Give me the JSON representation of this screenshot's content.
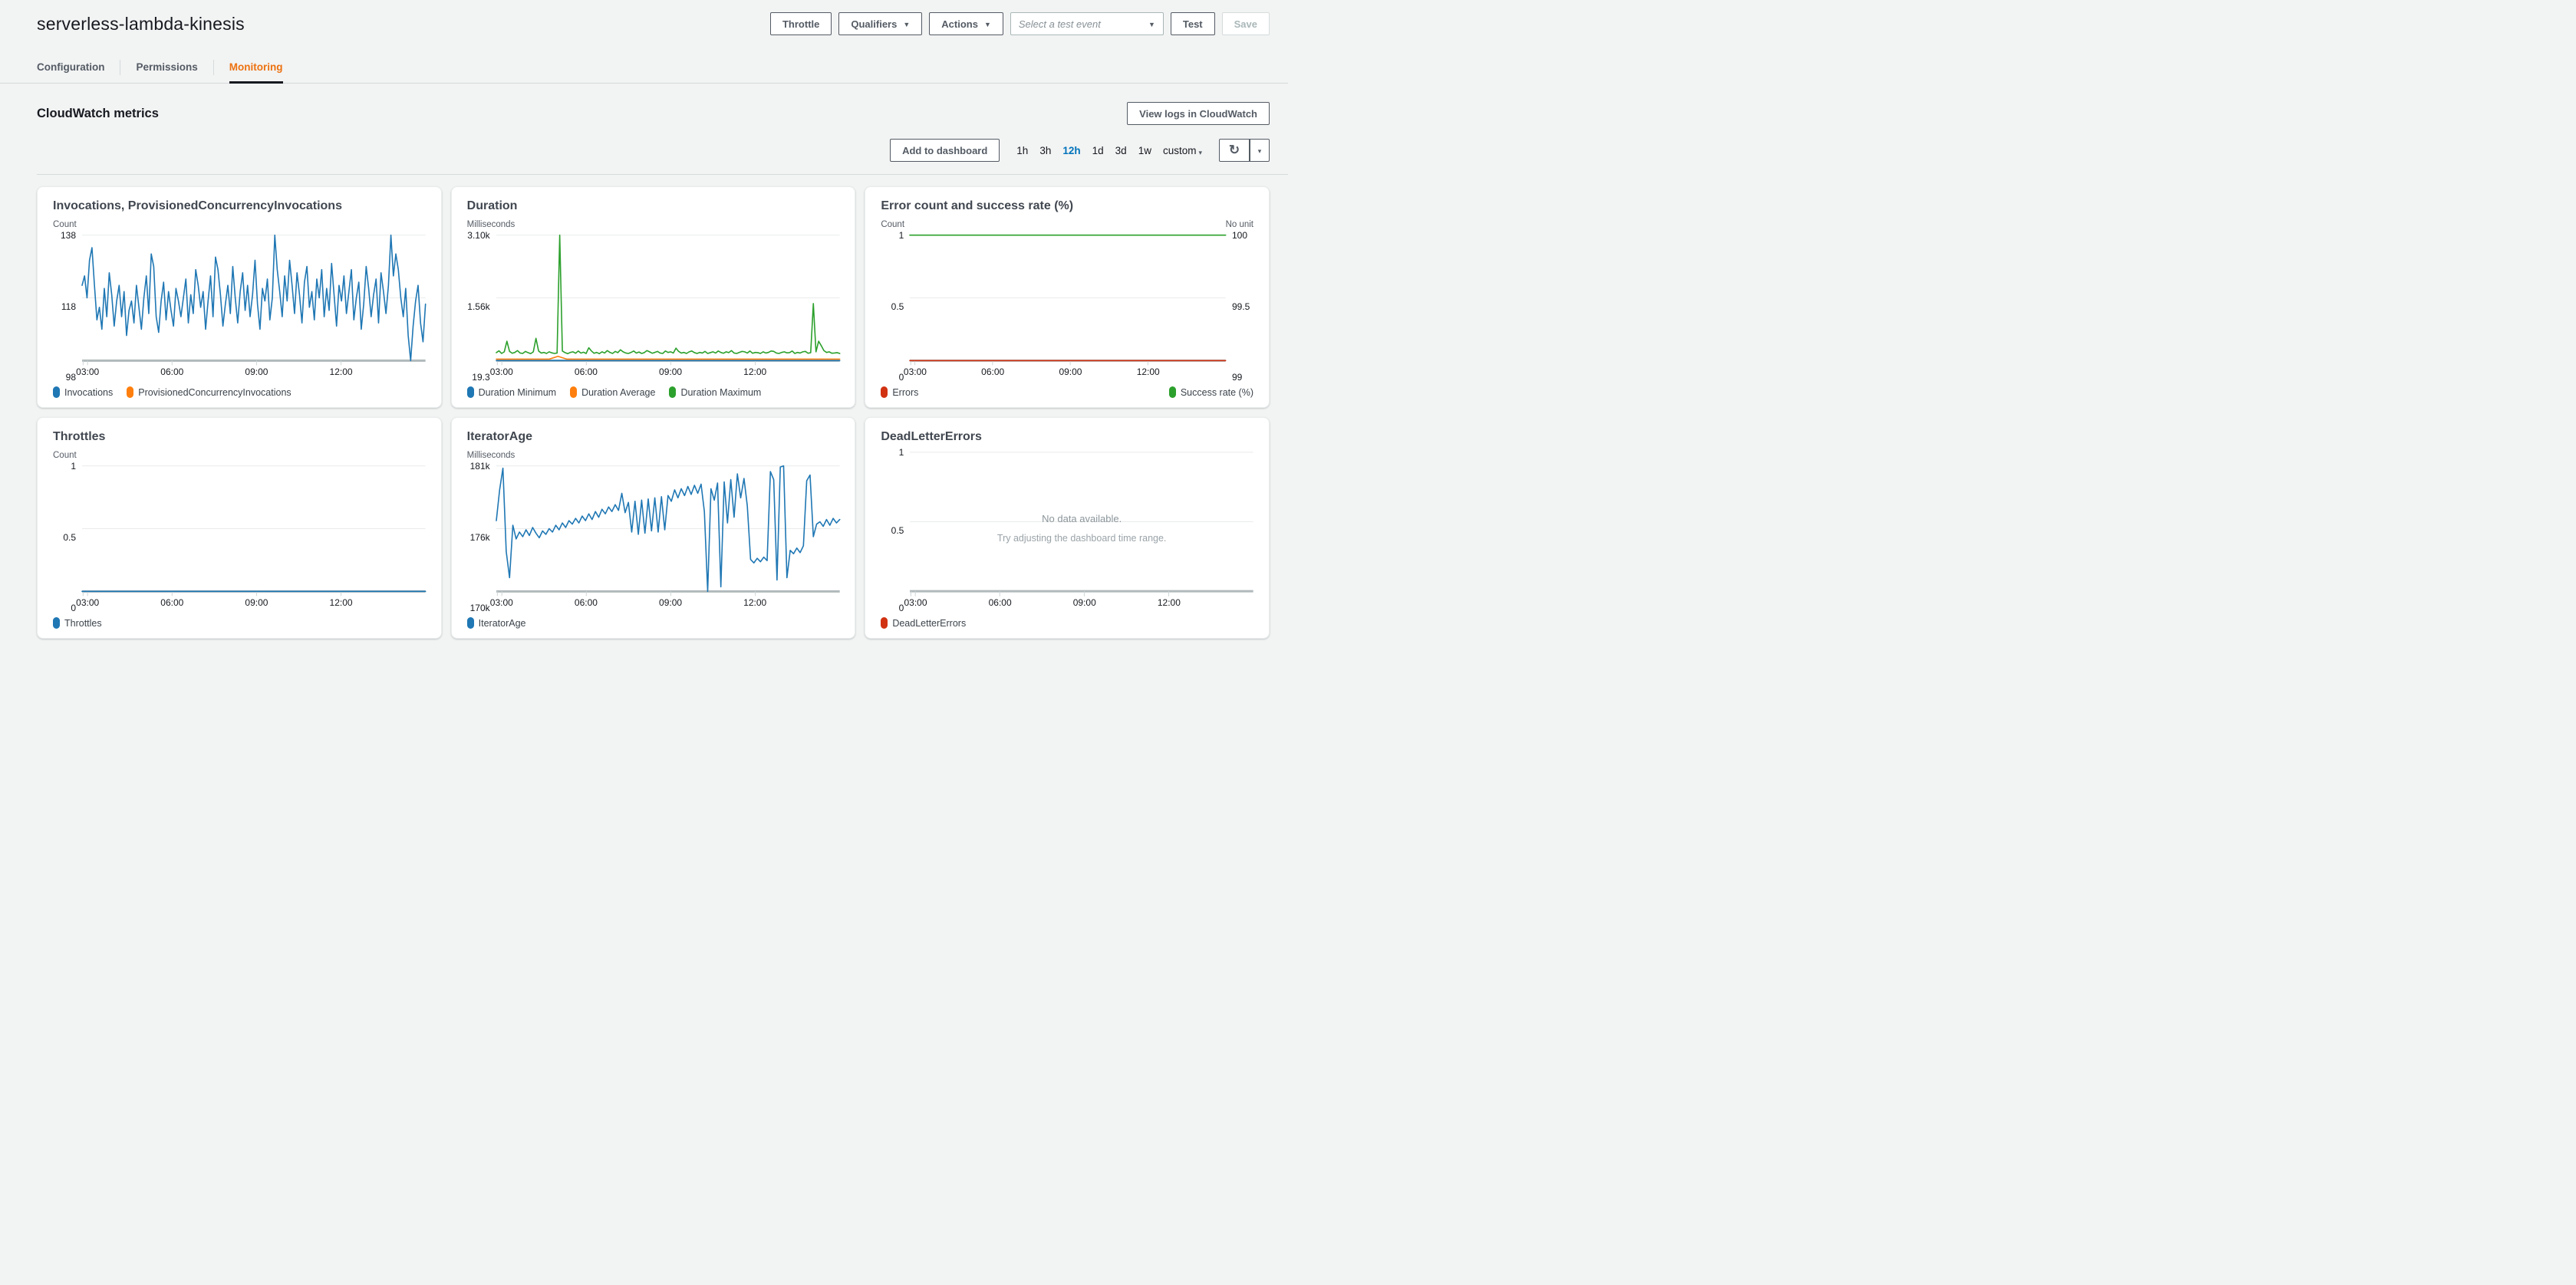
{
  "header": {
    "title": "serverless-lambda-kinesis",
    "throttle_label": "Throttle",
    "qualifiers_label": "Qualifiers",
    "actions_label": "Actions",
    "test_event_placeholder": "Select a test event",
    "test_label": "Test",
    "save_label": "Save",
    "caret": "▼"
  },
  "tabs": {
    "items": [
      {
        "label": "Configuration"
      },
      {
        "label": "Permissions"
      },
      {
        "label": "Monitoring"
      }
    ],
    "active": "Monitoring"
  },
  "metrics": {
    "heading": "CloudWatch metrics",
    "view_logs_label": "View logs in CloudWatch"
  },
  "toolbar": {
    "add_to_dashboard_label": "Add to dashboard",
    "ranges": [
      "1h",
      "3h",
      "12h",
      "1d",
      "3d",
      "1w",
      "custom"
    ],
    "selected_range": "12h",
    "custom_caret": "▾",
    "dropdown_caret": "▾",
    "refresh_icon": "↻"
  },
  "colors": {
    "blue": "#1f77b4",
    "orange": "#ff7f0e",
    "green": "#2ca02c",
    "red": "#d13212",
    "accent_orange": "#ec7211",
    "link_blue": "#0073bb"
  },
  "chart_data": [
    {
      "id": "invocations",
      "type": "line",
      "title": "Invocations, ProvisionedConcurrencyInvocations",
      "unit_left": "Count",
      "ymin": 98,
      "ymax": 138,
      "y_ticks_left": [
        "138",
        "118",
        "98"
      ],
      "x_ticks": {
        "labels": [
          "03:00",
          "06:00",
          "09:00",
          "12:00"
        ],
        "positions": [
          0.016,
          0.262,
          0.508,
          0.754
        ]
      },
      "series": [
        {
          "name": "Invocations",
          "color": "#1f77b4",
          "values": [
            122,
            125,
            118,
            130,
            134,
            122,
            111,
            115,
            108,
            121,
            112,
            126,
            119,
            109,
            117,
            122,
            112,
            120,
            106,
            114,
            117,
            110,
            122,
            115,
            108,
            118,
            125,
            113,
            132,
            128,
            112,
            107,
            117,
            123,
            111,
            120,
            114,
            109,
            121,
            117,
            112,
            118,
            124,
            110,
            119,
            113,
            127,
            122,
            115,
            120,
            108,
            117,
            125,
            112,
            131,
            127,
            119,
            109,
            116,
            122,
            113,
            128,
            118,
            110,
            120,
            126,
            114,
            122,
            112,
            119,
            130,
            116,
            108,
            121,
            117,
            124,
            111,
            118,
            138,
            127,
            120,
            112,
            125,
            117,
            130,
            122,
            113,
            126,
            119,
            110,
            123,
            128,
            115,
            120,
            111,
            124,
            118,
            127,
            112,
            121,
            114,
            129,
            119,
            109,
            122,
            117,
            125,
            113,
            120,
            127,
            111,
            118,
            123,
            108,
            116,
            128,
            121,
            112,
            119,
            124,
            110,
            126,
            120,
            113,
            122,
            138,
            125,
            132,
            127,
            118,
            112,
            121,
            106,
            98,
            109,
            117,
            122,
            110,
            104,
            116
          ]
        },
        {
          "name": "ProvisionedConcurrencyInvocations",
          "color": "#ff7f0e",
          "values": []
        }
      ]
    },
    {
      "id": "duration",
      "type": "line",
      "title": "Duration",
      "unit_left": "Milliseconds",
      "ymin": 19.3,
      "ymax": 3100,
      "y_ticks_left": [
        "3.10k",
        "1.56k",
        "19.3"
      ],
      "x_ticks": {
        "labels": [
          "03:00",
          "06:00",
          "09:00",
          "12:00"
        ],
        "positions": [
          0.016,
          0.262,
          0.508,
          0.754
        ]
      },
      "series": [
        {
          "name": "Duration Minimum",
          "color": "#1f77b4",
          "values": [
            19.3,
            19.3
          ]
        },
        {
          "name": "Duration Average",
          "color": "#ff7f0e",
          "values": [
            55,
            55,
            55,
            55,
            55,
            55,
            55,
            125,
            55,
            55,
            55,
            55,
            55,
            55,
            55,
            55,
            55,
            55,
            55,
            55,
            55,
            55,
            55,
            55,
            55,
            55,
            55,
            55,
            55,
            55,
            55,
            55,
            55,
            55,
            55,
            55,
            55,
            55,
            55,
            55
          ]
        },
        {
          "name": "Duration Maximum",
          "color": "#2ca02c",
          "values": [
            215,
            260,
            195,
            235,
            495,
            245,
            200,
            220,
            265,
            205,
            195,
            245,
            215,
            190,
            235,
            565,
            255,
            205,
            220,
            195,
            235,
            210,
            195,
            205,
            3100,
            255,
            215,
            190,
            220,
            235,
            200,
            255,
            205,
            225,
            195,
            335,
            255,
            200,
            220,
            190,
            235,
            205,
            265,
            220,
            195,
            245,
            215,
            285,
            235,
            205,
            195,
            220,
            255,
            205,
            230,
            195,
            215,
            265,
            235,
            200,
            220,
            245,
            205,
            195,
            255,
            220,
            235,
            205,
            325,
            245,
            205,
            220,
            195,
            235,
            255,
            215,
            195,
            220,
            205,
            245,
            195,
            215,
            235,
            205,
            255,
            220,
            200,
            235,
            215,
            265,
            205,
            195,
            220,
            245,
            235,
            205,
            255,
            200,
            220,
            215,
            195,
            235,
            205,
            220,
            255,
            245,
            205,
            195,
            220,
            235,
            210,
            215,
            255,
            195,
            220,
            205,
            235,
            245,
            200,
            215,
            1420,
            235,
            495,
            385,
            265,
            220,
            235,
            200,
            205,
            215,
            195
          ]
        }
      ]
    },
    {
      "id": "error-success",
      "type": "line",
      "title": "Error count and success rate (%)",
      "unit_left": "Count",
      "unit_right": "No unit",
      "ymin": 0,
      "ymax": 1,
      "y_ticks_left": [
        "1",
        "0.5",
        "0"
      ],
      "y_ticks_right": [
        "100",
        "99.5",
        "99"
      ],
      "legend_split": true,
      "x_ticks": {
        "labels": [
          "03:00",
          "06:00",
          "09:00",
          "12:00"
        ],
        "positions": [
          0.016,
          0.262,
          0.508,
          0.754
        ]
      },
      "series": [
        {
          "name": "Errors",
          "color": "#d13212",
          "values": [
            0,
            0
          ]
        },
        {
          "name": "Success rate (%)",
          "color": "#2ca02c",
          "ymin": 99,
          "ymax": 100,
          "values": [
            100,
            100
          ]
        }
      ]
    },
    {
      "id": "throttles",
      "type": "line",
      "title": "Throttles",
      "unit_left": "Count",
      "ymin": 0,
      "ymax": 1,
      "y_ticks_left": [
        "1",
        "0.5",
        "0"
      ],
      "x_ticks": {
        "labels": [
          "03:00",
          "06:00",
          "09:00",
          "12:00"
        ],
        "positions": [
          0.016,
          0.262,
          0.508,
          0.754
        ]
      },
      "series": [
        {
          "name": "Throttles",
          "color": "#1f77b4",
          "values": [
            0,
            0
          ]
        }
      ]
    },
    {
      "id": "iteratorage",
      "type": "line",
      "title": "IteratorAge",
      "unit_left": "Milliseconds",
      "ymin": 170000,
      "ymax": 181000,
      "y_ticks_left": [
        "181k",
        "176k",
        "170k"
      ],
      "x_ticks": {
        "labels": [
          "03:00",
          "06:00",
          "09:00",
          "12:00"
        ],
        "positions": [
          0.016,
          0.262,
          0.508,
          0.754
        ]
      },
      "series": [
        {
          "name": "IteratorAge",
          "color": "#1f77b4",
          "values": [
            176200,
            178900,
            180800,
            173500,
            171200,
            175800,
            174600,
            175200,
            174800,
            175400,
            174900,
            175600,
            175100,
            174700,
            175300,
            175000,
            175500,
            175200,
            175800,
            175400,
            176000,
            175600,
            176200,
            175900,
            176400,
            176000,
            176600,
            176200,
            176800,
            176300,
            177000,
            176500,
            177200,
            176800,
            177400,
            177000,
            177600,
            177100,
            178600,
            176900,
            177800,
            175200,
            177900,
            175000,
            178000,
            175100,
            178100,
            175300,
            178200,
            175200,
            178300,
            175400,
            178400,
            177900,
            178900,
            178200,
            179000,
            178400,
            179200,
            178500,
            179300,
            178600,
            179400,
            177000,
            170000,
            179000,
            178000,
            179500,
            170400,
            179600,
            176000,
            179800,
            176500,
            180300,
            178200,
            179900,
            177500,
            172800,
            172500,
            172900,
            172600,
            173000,
            172700,
            180500,
            179800,
            171000,
            180900,
            181000,
            171200,
            173600,
            173300,
            173800,
            173400,
            174000,
            179700,
            180200,
            174800,
            175900,
            176100,
            175700,
            176300,
            175800,
            176400,
            176000,
            176300
          ]
        }
      ]
    },
    {
      "id": "deadlettererrors",
      "type": "line",
      "title": "DeadLetterErrors",
      "ymin": 0,
      "ymax": 1,
      "y_ticks_left": [
        "1",
        "0.5",
        "0"
      ],
      "no_data": {
        "line1": "No data available.",
        "line2": "Try adjusting the dashboard time range."
      },
      "x_ticks": {
        "labels": [
          "03:00",
          "06:00",
          "09:00",
          "12:00"
        ],
        "positions": [
          0.016,
          0.262,
          0.508,
          0.754
        ]
      },
      "series": [
        {
          "name": "DeadLetterErrors",
          "color": "#d13212",
          "values": []
        }
      ]
    }
  ]
}
